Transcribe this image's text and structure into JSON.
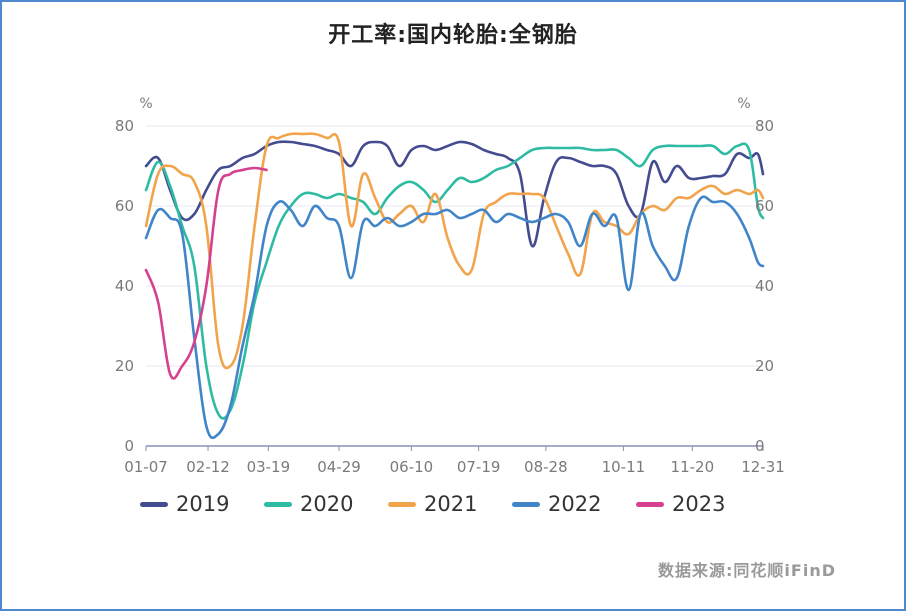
{
  "chart_data": {
    "type": "line",
    "title": "开工率:国内轮胎:全钢胎",
    "unit_left": "%",
    "unit_right": "%",
    "ylim": [
      0,
      80
    ],
    "y_ticks": [
      0,
      20,
      40,
      60,
      80
    ],
    "y_tick_labels": [
      "0",
      "20",
      "40",
      "60",
      "80"
    ],
    "x_range": [
      7,
      365
    ],
    "x_ticks": [
      7,
      43,
      78,
      119,
      161,
      200,
      239,
      284,
      324,
      365
    ],
    "x_tick_labels": [
      "01-07",
      "02-12",
      "03-19",
      "04-29",
      "06-10",
      "07-19",
      "08-28",
      "10-11",
      "11-20",
      "12-31"
    ],
    "grid": true,
    "legend_position": "bottom",
    "source": "数据来源:同花顺iFinD",
    "series": [
      {
        "name": "2019",
        "color": "#434c8f",
        "points": [
          [
            7,
            70
          ],
          [
            14,
            72
          ],
          [
            21,
            64
          ],
          [
            28,
            57
          ],
          [
            35,
            58
          ],
          [
            42,
            64
          ],
          [
            49,
            69
          ],
          [
            56,
            70
          ],
          [
            63,
            72
          ],
          [
            70,
            73
          ],
          [
            77,
            75
          ],
          [
            84,
            76
          ],
          [
            91,
            76
          ],
          [
            98,
            75.5
          ],
          [
            105,
            75
          ],
          [
            112,
            74
          ],
          [
            119,
            73
          ],
          [
            126,
            70
          ],
          [
            133,
            75
          ],
          [
            140,
            76
          ],
          [
            147,
            75
          ],
          [
            154,
            70
          ],
          [
            161,
            74
          ],
          [
            168,
            75
          ],
          [
            175,
            74
          ],
          [
            182,
            75
          ],
          [
            189,
            76
          ],
          [
            196,
            75.5
          ],
          [
            203,
            74
          ],
          [
            210,
            73
          ],
          [
            217,
            72
          ],
          [
            224,
            68
          ],
          [
            231,
            50
          ],
          [
            238,
            62
          ],
          [
            245,
            71
          ],
          [
            252,
            72
          ],
          [
            259,
            71
          ],
          [
            266,
            70
          ],
          [
            273,
            70
          ],
          [
            280,
            68
          ],
          [
            287,
            60
          ],
          [
            294,
            58
          ],
          [
            301,
            71
          ],
          [
            308,
            66
          ],
          [
            315,
            70
          ],
          [
            322,
            67
          ],
          [
            329,
            67
          ],
          [
            336,
            67.5
          ],
          [
            343,
            68
          ],
          [
            350,
            73
          ],
          [
            357,
            72
          ],
          [
            362,
            73
          ],
          [
            365,
            68
          ]
        ]
      },
      {
        "name": "2020",
        "color": "#2fbba3",
        "points": [
          [
            7,
            64
          ],
          [
            14,
            71
          ],
          [
            21,
            65
          ],
          [
            28,
            55
          ],
          [
            35,
            45
          ],
          [
            42,
            20
          ],
          [
            49,
            8
          ],
          [
            56,
            9
          ],
          [
            63,
            20
          ],
          [
            70,
            36
          ],
          [
            77,
            46
          ],
          [
            84,
            55
          ],
          [
            91,
            60
          ],
          [
            98,
            63
          ],
          [
            105,
            63
          ],
          [
            112,
            62
          ],
          [
            119,
            63
          ],
          [
            126,
            62
          ],
          [
            133,
            61
          ],
          [
            140,
            58
          ],
          [
            147,
            62
          ],
          [
            154,
            65
          ],
          [
            161,
            66
          ],
          [
            168,
            64
          ],
          [
            175,
            61
          ],
          [
            182,
            64
          ],
          [
            189,
            67
          ],
          [
            196,
            66
          ],
          [
            203,
            67
          ],
          [
            210,
            69
          ],
          [
            217,
            70
          ],
          [
            224,
            72
          ],
          [
            231,
            74
          ],
          [
            238,
            74.5
          ],
          [
            245,
            74.5
          ],
          [
            252,
            74.5
          ],
          [
            259,
            74.5
          ],
          [
            266,
            74
          ],
          [
            273,
            74
          ],
          [
            280,
            74
          ],
          [
            287,
            72
          ],
          [
            294,
            70
          ],
          [
            301,
            74
          ],
          [
            308,
            75
          ],
          [
            315,
            75
          ],
          [
            322,
            75
          ],
          [
            329,
            75
          ],
          [
            336,
            75
          ],
          [
            343,
            73
          ],
          [
            350,
            75
          ],
          [
            357,
            74
          ],
          [
            362,
            60
          ],
          [
            365,
            57
          ]
        ]
      },
      {
        "name": "2021",
        "color": "#f2a44c",
        "points": [
          [
            7,
            55
          ],
          [
            14,
            68
          ],
          [
            21,
            70
          ],
          [
            28,
            68
          ],
          [
            35,
            66
          ],
          [
            42,
            55
          ],
          [
            49,
            25
          ],
          [
            56,
            20
          ],
          [
            63,
            30
          ],
          [
            70,
            55
          ],
          [
            77,
            75
          ],
          [
            84,
            77
          ],
          [
            91,
            78
          ],
          [
            98,
            78
          ],
          [
            105,
            78
          ],
          [
            112,
            77
          ],
          [
            119,
            76
          ],
          [
            126,
            55
          ],
          [
            133,
            68
          ],
          [
            140,
            62
          ],
          [
            147,
            56
          ],
          [
            154,
            58
          ],
          [
            161,
            60
          ],
          [
            168,
            56
          ],
          [
            175,
            63
          ],
          [
            182,
            52
          ],
          [
            189,
            45
          ],
          [
            196,
            44
          ],
          [
            203,
            58
          ],
          [
            210,
            61
          ],
          [
            217,
            63
          ],
          [
            224,
            63
          ],
          [
            231,
            63
          ],
          [
            238,
            62
          ],
          [
            245,
            55
          ],
          [
            252,
            48
          ],
          [
            259,
            43
          ],
          [
            266,
            58
          ],
          [
            273,
            56
          ],
          [
            280,
            55
          ],
          [
            287,
            53
          ],
          [
            294,
            58
          ],
          [
            301,
            60
          ],
          [
            308,
            59
          ],
          [
            315,
            62
          ],
          [
            322,
            62
          ],
          [
            329,
            64
          ],
          [
            336,
            65
          ],
          [
            343,
            63
          ],
          [
            350,
            64
          ],
          [
            357,
            63
          ],
          [
            362,
            64
          ],
          [
            365,
            62
          ]
        ]
      },
      {
        "name": "2022",
        "color": "#4185c9",
        "points": [
          [
            7,
            52
          ],
          [
            14,
            59
          ],
          [
            21,
            57
          ],
          [
            28,
            53
          ],
          [
            35,
            27
          ],
          [
            42,
            5
          ],
          [
            49,
            3
          ],
          [
            56,
            10
          ],
          [
            63,
            25
          ],
          [
            70,
            38
          ],
          [
            77,
            55
          ],
          [
            84,
            61
          ],
          [
            91,
            59
          ],
          [
            98,
            55
          ],
          [
            105,
            60
          ],
          [
            112,
            57
          ],
          [
            119,
            55
          ],
          [
            126,
            42
          ],
          [
            133,
            56
          ],
          [
            140,
            55
          ],
          [
            147,
            57
          ],
          [
            154,
            55
          ],
          [
            161,
            56
          ],
          [
            168,
            58
          ],
          [
            175,
            58
          ],
          [
            182,
            59
          ],
          [
            189,
            57
          ],
          [
            196,
            58
          ],
          [
            203,
            59
          ],
          [
            210,
            56
          ],
          [
            217,
            58
          ],
          [
            224,
            57
          ],
          [
            231,
            56
          ],
          [
            238,
            57
          ],
          [
            245,
            58
          ],
          [
            252,
            56
          ],
          [
            259,
            50
          ],
          [
            266,
            58
          ],
          [
            273,
            55
          ],
          [
            280,
            57
          ],
          [
            287,
            39
          ],
          [
            294,
            58
          ],
          [
            301,
            50
          ],
          [
            308,
            45
          ],
          [
            315,
            42
          ],
          [
            322,
            55
          ],
          [
            329,
            62
          ],
          [
            336,
            61
          ],
          [
            343,
            61
          ],
          [
            350,
            58
          ],
          [
            357,
            52
          ],
          [
            362,
            46
          ],
          [
            365,
            45
          ]
        ]
      },
      {
        "name": "2023",
        "color": "#d6418f",
        "points": [
          [
            7,
            44
          ],
          [
            14,
            36
          ],
          [
            21,
            18
          ],
          [
            28,
            20
          ],
          [
            35,
            26
          ],
          [
            42,
            40
          ],
          [
            49,
            64
          ],
          [
            56,
            68
          ],
          [
            63,
            69
          ],
          [
            70,
            69.5
          ],
          [
            77,
            69
          ]
        ]
      }
    ]
  }
}
